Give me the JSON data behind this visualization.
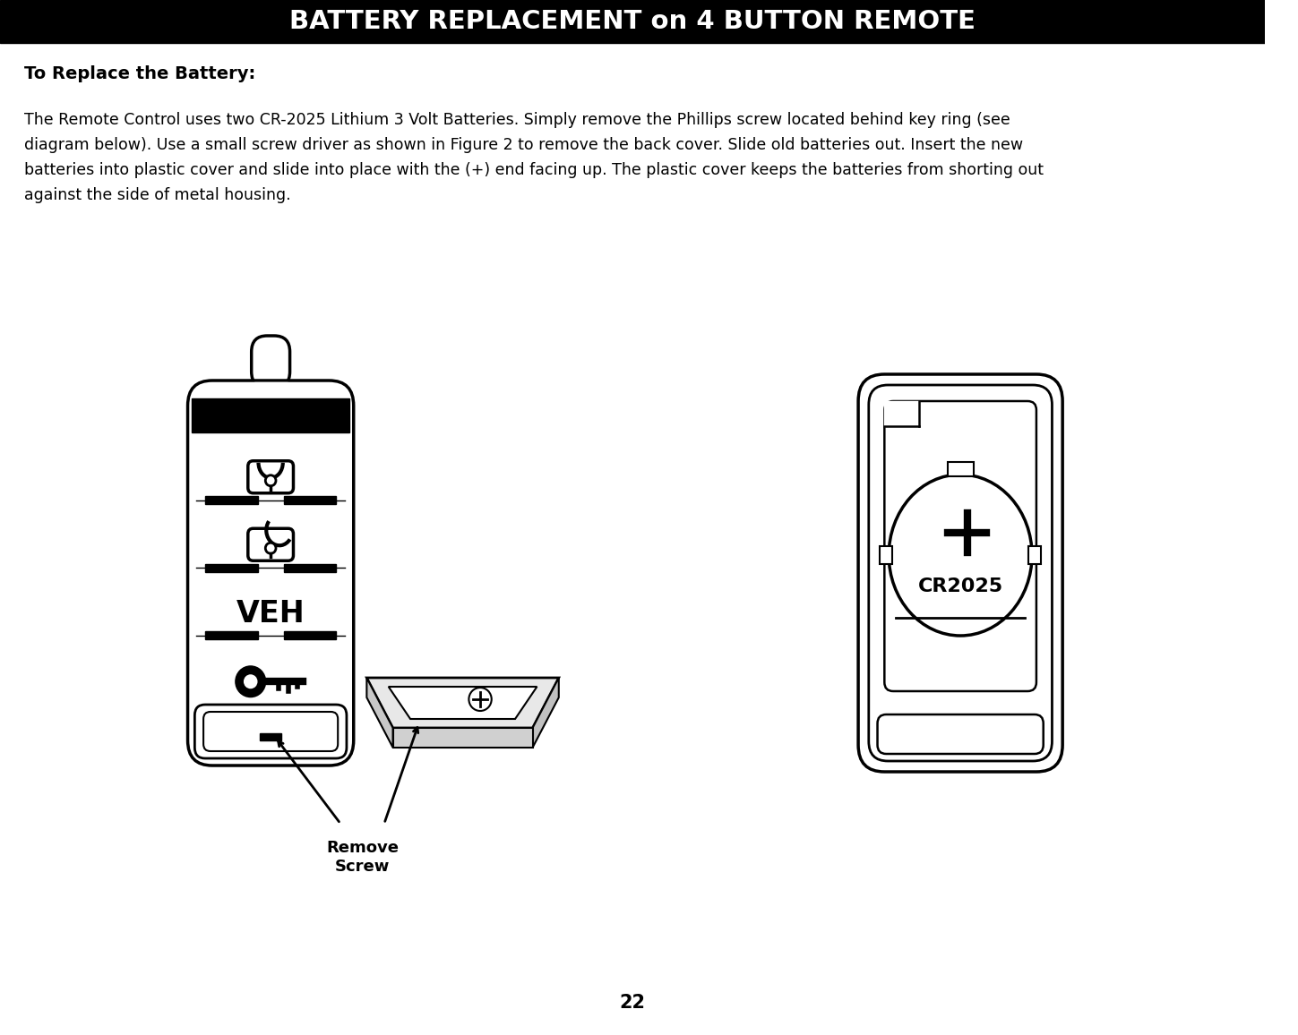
{
  "title": "BATTERY REPLACEMENT on 4 BUTTON REMOTE",
  "subtitle": "To Replace the Battery:",
  "body_line1": "The Remote Control uses two CR-2025 Lithium 3 Volt Batteries. Simply remove the Phillips screw located behind key ring (see",
  "body_line2": "diagram below). Use a small screw driver as shown in Figure 2 to remove the back cover. Slide old batteries out. Insert the new",
  "body_line3": "batteries into plastic cover and slide into place with the (+) end facing up. The plastic cover keeps the batteries from shorting out",
  "body_line4": "against the side of metal housing.",
  "page_number": "22",
  "remove_screw_label": "Remove\nScrew",
  "cr2025_label": "CR2025",
  "title_bg": "#000000",
  "title_color": "#ffffff",
  "body_color": "#000000",
  "bg_color": "#ffffff",
  "title_fontsize": 21,
  "subtitle_fontsize": 14,
  "body_fontsize": 12.5,
  "page_fontsize": 15
}
